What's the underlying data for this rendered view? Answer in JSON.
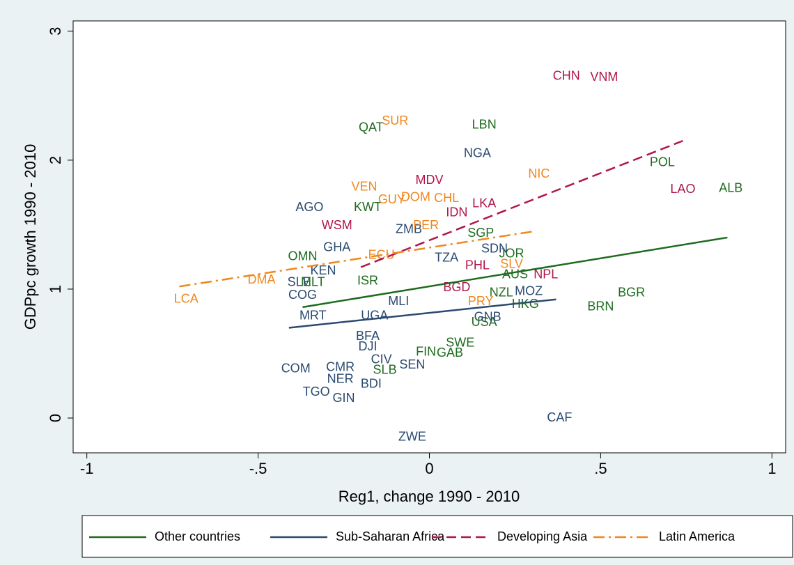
{
  "chart_data": {
    "type": "scatter",
    "x_label": "Reg1, change 1990 - 2010",
    "y_label": "GDPpc growth 1990 - 2010",
    "xlim": [
      -1.04,
      1.04
    ],
    "ylim": [
      -0.27,
      3.08
    ],
    "xticks": [
      -1,
      {
        "value": -0.5,
        "label": "-.5"
      },
      0,
      {
        "value": 0.5,
        "label": ".5"
      },
      1
    ],
    "yticks": [
      0,
      1,
      2,
      3
    ],
    "series": [
      {
        "name": "Other countries",
        "color": "#1e6b1e",
        "dash": "solid",
        "labels": [
          "QAT",
          "LBN",
          "POL",
          "ALB",
          "KWT",
          "SGP",
          "OMN",
          "ISR",
          "BGR",
          "BRN",
          "NZL",
          "HKG",
          "USA",
          "SWE",
          "FIN",
          "GAB",
          "SLB",
          "MLT",
          "JOR",
          "AUS"
        ],
        "x": [
          -0.17,
          0.16,
          0.68,
          0.88,
          -0.18,
          0.15,
          -0.37,
          -0.18,
          0.59,
          0.5,
          0.21,
          0.28,
          0.16,
          0.09,
          -0.01,
          0.06,
          -0.13,
          -0.34,
          0.24,
          0.25
        ],
        "y": [
          2.25,
          2.27,
          1.98,
          1.78,
          1.63,
          1.43,
          1.25,
          1.06,
          0.97,
          0.86,
          0.97,
          0.88,
          0.74,
          0.58,
          0.51,
          0.5,
          0.37,
          1.05,
          1.27,
          1.11
        ],
        "fit_x": [
          -0.37,
          0.87
        ],
        "fit_y": [
          0.86,
          1.4
        ]
      },
      {
        "name": "Sub-Saharan Africa",
        "color": "#2a4a70",
        "dash": "solid",
        "labels": [
          "NGA",
          "AGO",
          "GHA",
          "KEN",
          "SLE",
          "COG",
          "MRT",
          "UGA",
          "MLI",
          "ZMB",
          "TZA",
          "SDN",
          "MOZ",
          "GNB",
          "BFA",
          "DJI",
          "CIV",
          "SEN",
          "COM",
          "CMR",
          "NER",
          "BDI",
          "TGO",
          "GIN",
          "ZWE",
          "CAF"
        ],
        "x": [
          0.14,
          -0.35,
          -0.27,
          -0.31,
          -0.38,
          -0.37,
          -0.34,
          -0.16,
          -0.09,
          -0.06,
          0.05,
          0.19,
          0.29,
          0.17,
          -0.18,
          -0.18,
          -0.14,
          -0.05,
          -0.39,
          -0.26,
          -0.26,
          -0.17,
          -0.33,
          -0.25,
          -0.05,
          0.38
        ],
        "y": [
          2.05,
          1.63,
          1.32,
          1.14,
          1.05,
          0.95,
          0.79,
          0.79,
          0.9,
          1.46,
          1.24,
          1.31,
          0.98,
          0.78,
          0.63,
          0.55,
          0.45,
          0.41,
          0.38,
          0.39,
          0.3,
          0.26,
          0.2,
          0.15,
          -0.15,
          0.0
        ],
        "fit_x": [
          -0.41,
          0.37
        ],
        "fit_y": [
          0.7,
          0.92
        ]
      },
      {
        "name": "Developing Asia",
        "color": "#b0154a",
        "dash": "dash",
        "labels": [
          "CHN",
          "VNM",
          "LAO",
          "NPL",
          "MDV",
          "LKA",
          "IDN",
          "WSM",
          "BGD",
          "PHL"
        ],
        "x": [
          0.4,
          0.51,
          0.74,
          0.34,
          0.0,
          0.16,
          0.08,
          -0.27,
          0.08,
          0.14
        ],
        "y": [
          2.65,
          2.64,
          1.77,
          1.11,
          1.84,
          1.66,
          1.59,
          1.49,
          1.01,
          1.18
        ],
        "fit_x": [
          -0.2,
          0.74
        ],
        "fit_y": [
          1.17,
          2.15
        ]
      },
      {
        "name": "Latin America",
        "color": "#f0871c",
        "dash": "dashdot",
        "labels": [
          "SUR",
          "VEN",
          "DOM",
          "CHL",
          "GUY",
          "NIC",
          "LCA",
          "DMA",
          "PER",
          "ECU",
          "SLV",
          "PRY"
        ],
        "x": [
          -0.1,
          -0.19,
          -0.04,
          0.05,
          -0.11,
          0.32,
          -0.71,
          -0.49,
          -0.01,
          -0.14,
          0.24,
          0.15
        ],
        "y": [
          2.3,
          1.79,
          1.71,
          1.7,
          1.69,
          1.89,
          0.92,
          1.07,
          1.49,
          1.26,
          1.19,
          0.9
        ],
        "fit_x": [
          -0.73,
          0.31
        ],
        "fit_y": [
          1.02,
          1.45
        ]
      }
    ]
  }
}
